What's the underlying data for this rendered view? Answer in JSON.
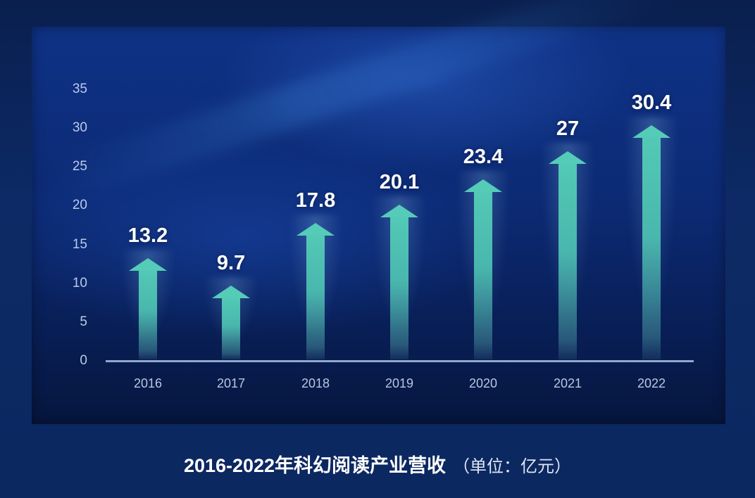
{
  "chart_data": {
    "type": "bar",
    "title": "2016-2022年科幻阅读产业营收",
    "unit_note": "（单位：亿元）",
    "categories": [
      "2016",
      "2017",
      "2018",
      "2019",
      "2020",
      "2021",
      "2022"
    ],
    "values": [
      13.2,
      9.7,
      17.8,
      20.1,
      23.4,
      27,
      30.4
    ],
    "value_labels": [
      "13.2",
      "9.7",
      "17.8",
      "20.1",
      "23.4",
      "27",
      "30.4"
    ],
    "xlabel": "",
    "ylabel": "",
    "ylim": [
      0,
      35
    ],
    "yticks": [
      "0",
      "5",
      "10",
      "15",
      "20",
      "25",
      "30",
      "35"
    ],
    "grid": false,
    "legend": null,
    "bar_style": "upward arrows",
    "colors": {
      "bar": "#55ccb8",
      "background": "#0c2a74",
      "label": "#ffffff",
      "axis": "#8fa9cf"
    }
  },
  "caption": {
    "title": "2016-2022年科幻阅读产业营收",
    "unit": "（单位：亿元）"
  }
}
